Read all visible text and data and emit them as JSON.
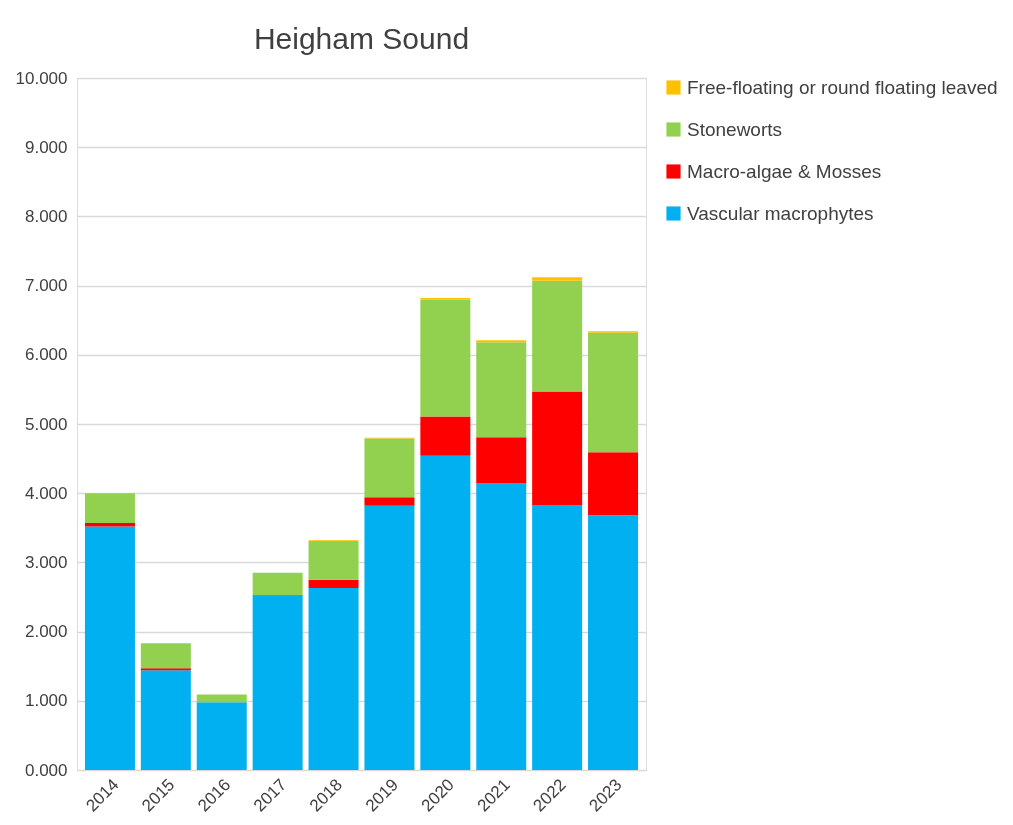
{
  "chart_data": {
    "type": "bar",
    "title": "Heigham Sound",
    "stacked": true,
    "legend": "right",
    "grid": "y",
    "categories": [
      "2014",
      "2015",
      "2016",
      "2017",
      "2018",
      "2019",
      "2020",
      "2021",
      "2022",
      "2023"
    ],
    "ylim": [
      0,
      10
    ],
    "yticks": [
      {
        "value": 0,
        "label": "0.000"
      },
      {
        "value": 1,
        "label": "1.000"
      },
      {
        "value": 2,
        "label": "2.000"
      },
      {
        "value": 3,
        "label": "3.000"
      },
      {
        "value": 4,
        "label": "4.000"
      },
      {
        "value": 5,
        "label": "5.000"
      },
      {
        "value": 6,
        "label": "6.000"
      },
      {
        "value": 7,
        "label": "7.000"
      },
      {
        "value": 8,
        "label": "8.000"
      },
      {
        "value": 9,
        "label": "9.000"
      },
      {
        "value": 10,
        "label": "10.000"
      }
    ],
    "series": [
      {
        "name": "Vascular macrophytes",
        "color": "#00b0f0",
        "values": [
          3.52,
          1.44,
          0.98,
          2.52,
          2.63,
          3.82,
          4.54,
          4.14,
          3.83,
          3.68
        ]
      },
      {
        "name": "Macro-algae & Mosses",
        "color": "#ff0000",
        "values": [
          0.05,
          0.03,
          0,
          0.01,
          0.12,
          0.12,
          0.57,
          0.67,
          1.64,
          0.91
        ]
      },
      {
        "name": "Stoneworts",
        "color": "#92d050",
        "values": [
          0.43,
          0.36,
          0.11,
          0.32,
          0.56,
          0.85,
          1.69,
          1.37,
          1.6,
          1.73
        ]
      },
      {
        "name": "Free-floating or round floating leaved",
        "color": "#ffc000",
        "values": [
          0,
          0,
          0,
          0,
          0.01,
          0.01,
          0.02,
          0.03,
          0.05,
          0.02
        ]
      }
    ]
  }
}
